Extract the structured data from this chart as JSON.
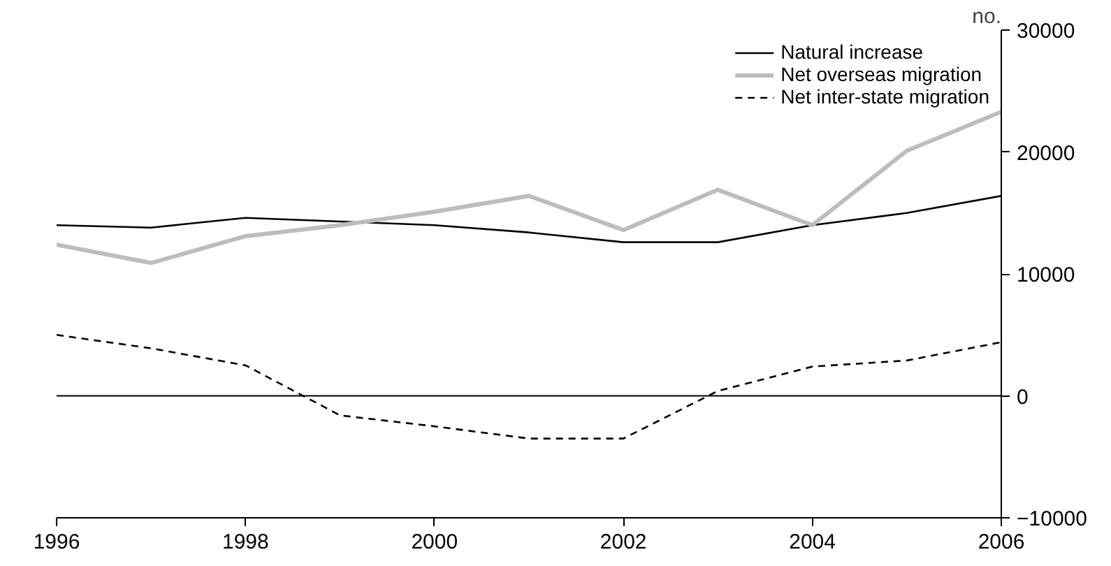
{
  "chart_data": {
    "type": "line",
    "ylabel": "no.",
    "x": [
      1996,
      1997,
      1998,
      1999,
      2000,
      2001,
      2002,
      2003,
      2004,
      2005,
      2006
    ],
    "series": [
      {
        "name": "Natural increase",
        "color": "#000000",
        "line_style": "solid",
        "values": [
          14000,
          13800,
          14600,
          14300,
          14000,
          13400,
          12600,
          12600,
          14000,
          15000,
          16400
        ]
      },
      {
        "name": "Net overseas migration",
        "color": "#bdbdbd",
        "line_style": "solid",
        "values": [
          12400,
          10900,
          13100,
          14000,
          15100,
          16400,
          13600,
          16900,
          14000,
          20100,
          23300
        ]
      },
      {
        "name": "Net inter-state migration",
        "color": "#000000",
        "line_style": "dashed",
        "values": [
          5000,
          3900,
          2500,
          -1600,
          -2500,
          -3500,
          -3500,
          400,
          2400,
          2900,
          4400
        ]
      }
    ],
    "xlim": [
      1996,
      2006
    ],
    "xticks": [
      1996,
      1998,
      2000,
      2002,
      2004,
      2006
    ],
    "ylim": [
      -10000,
      30000
    ],
    "yticks": [
      -10000,
      0,
      10000,
      20000,
      30000
    ],
    "ref_lines": [
      {
        "axis": "y",
        "value": 0,
        "color": "#000000"
      }
    ],
    "grid": false,
    "legend": "top right",
    "marker": "none"
  }
}
